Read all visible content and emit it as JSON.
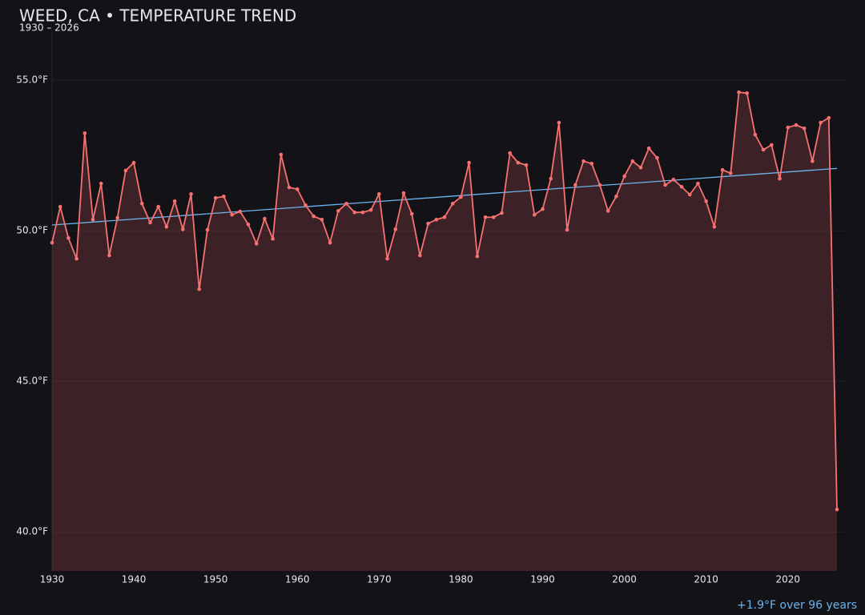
{
  "chart_data": {
    "type": "line",
    "title": "WEED, CA • TEMPERATURE TREND",
    "subtitle": "1930 – 2026",
    "x": [
      1930,
      1931,
      1932,
      1933,
      1934,
      1935,
      1936,
      1937,
      1938,
      1939,
      1940,
      1941,
      1942,
      1943,
      1944,
      1945,
      1946,
      1947,
      1948,
      1949,
      1950,
      1951,
      1952,
      1953,
      1954,
      1955,
      1956,
      1957,
      1958,
      1959,
      1960,
      1961,
      1962,
      1963,
      1964,
      1965,
      1966,
      1967,
      1968,
      1969,
      1970,
      1971,
      1972,
      1973,
      1974,
      1975,
      1976,
      1977,
      1978,
      1979,
      1980,
      1981,
      1982,
      1983,
      1984,
      1985,
      1986,
      1987,
      1988,
      1989,
      1990,
      1991,
      1992,
      1993,
      1994,
      1995,
      1996,
      1997,
      1998,
      1999,
      2000,
      2001,
      2002,
      2003,
      2004,
      2005,
      2006,
      2007,
      2008,
      2009,
      2010,
      2011,
      2012,
      2013,
      2014,
      2015,
      2016,
      2017,
      2018,
      2019,
      2020,
      2021,
      2022,
      2023,
      2024,
      2025,
      2026
    ],
    "values": [
      49.6,
      50.8,
      49.76,
      49.07,
      53.24,
      50.37,
      51.57,
      49.18,
      50.43,
      52.0,
      52.26,
      50.9,
      50.27,
      50.8,
      50.13,
      50.98,
      50.05,
      51.22,
      48.06,
      50.03,
      51.09,
      51.14,
      50.53,
      50.64,
      50.21,
      49.57,
      50.4,
      49.73,
      52.53,
      51.44,
      51.38,
      50.85,
      50.48,
      50.37,
      49.6,
      50.66,
      50.9,
      50.61,
      50.61,
      50.69,
      51.22,
      49.07,
      50.05,
      51.25,
      50.56,
      49.18,
      50.24,
      50.37,
      50.45,
      50.9,
      51.12,
      52.26,
      49.15,
      50.45,
      50.45,
      50.59,
      52.58,
      52.26,
      52.18,
      50.53,
      50.72,
      51.73,
      53.59,
      50.03,
      51.52,
      52.31,
      52.23,
      51.52,
      50.66,
      51.14,
      51.81,
      52.31,
      52.1,
      52.74,
      52.42,
      51.52,
      51.7,
      51.46,
      51.2,
      51.57,
      50.98,
      50.13,
      52.02,
      51.91,
      54.6,
      54.57,
      53.19,
      52.69,
      52.85,
      51.73,
      53.43,
      53.51,
      53.4,
      52.31,
      53.59,
      53.75,
      40.74
    ],
    "color": "#f87171",
    "trend": {
      "x": [
        1930,
        2026
      ],
      "values": [
        50.19,
        52.07
      ],
      "color": "#6cb4ee"
    },
    "annotation": "+1.9°F over 96 years",
    "xlim": [
      1930,
      2026
    ],
    "xticks": [
      1930,
      1940,
      1950,
      1960,
      1970,
      1980,
      1990,
      2000,
      2010,
      2020
    ],
    "ylim": [
      38.7,
      56.6
    ],
    "yticks": [
      {
        "value": 40,
        "label": "40.0°F"
      },
      {
        "value": 45,
        "label": "45.0°F"
      },
      {
        "value": 50,
        "label": "50.0°F"
      },
      {
        "value": 55,
        "label": "55.0°F"
      }
    ],
    "grid": true
  }
}
